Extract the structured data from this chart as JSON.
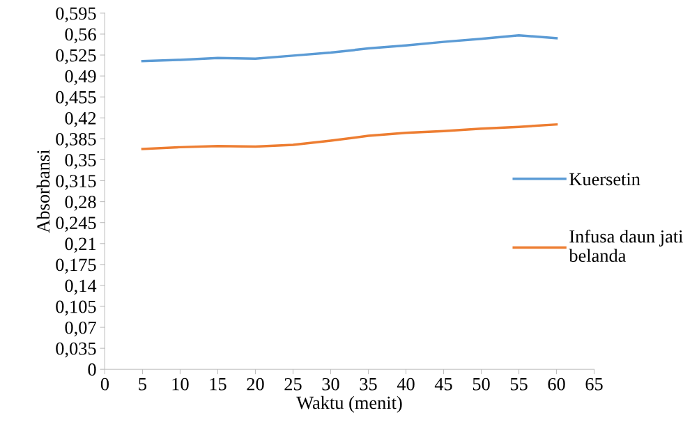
{
  "chart_data": {
    "type": "line",
    "xlabel": "Waktu (menit)",
    "ylabel": "Absorbansi",
    "x": [
      5,
      10,
      15,
      20,
      25,
      30,
      35,
      40,
      45,
      50,
      55,
      60
    ],
    "series": [
      {
        "name": "Kuersetin",
        "color": "#5b9bd5",
        "values": [
          0.515,
          0.517,
          0.52,
          0.519,
          0.524,
          0.529,
          0.536,
          0.541,
          0.547,
          0.552,
          0.558,
          0.553
        ]
      },
      {
        "name": "Infusa daun jati belanda",
        "color": "#ed7d31",
        "values": [
          0.368,
          0.371,
          0.373,
          0.372,
          0.375,
          0.382,
          0.39,
          0.395,
          0.398,
          0.402,
          0.405,
          0.409
        ]
      }
    ],
    "xlim": [
      0,
      65
    ],
    "xticks": [
      0,
      5,
      10,
      15,
      20,
      25,
      30,
      35,
      40,
      45,
      50,
      55,
      60,
      65
    ],
    "ylim": [
      0,
      0.595
    ],
    "yticks": [
      {
        "value": 0,
        "label": "0"
      },
      {
        "value": 0.035,
        "label": "0,035"
      },
      {
        "value": 0.07,
        "label": "0,07"
      },
      {
        "value": 0.105,
        "label": "0,105"
      },
      {
        "value": 0.14,
        "label": "0,14"
      },
      {
        "value": 0.175,
        "label": "0,175"
      },
      {
        "value": 0.21,
        "label": "0,21"
      },
      {
        "value": 0.245,
        "label": "0,245"
      },
      {
        "value": 0.28,
        "label": "0,28"
      },
      {
        "value": 0.315,
        "label": "0,315"
      },
      {
        "value": 0.35,
        "label": "0,35"
      },
      {
        "value": 0.385,
        "label": "0,385"
      },
      {
        "value": 0.42,
        "label": "0,42"
      },
      {
        "value": 0.455,
        "label": "0,455"
      },
      {
        "value": 0.49,
        "label": "0,49"
      },
      {
        "value": 0.525,
        "label": "0,525"
      },
      {
        "value": 0.56,
        "label": "0,56"
      },
      {
        "value": 0.595,
        "label": "0,595"
      }
    ],
    "grid": false,
    "legend": "right",
    "marker": "none",
    "line_style": "solid"
  }
}
